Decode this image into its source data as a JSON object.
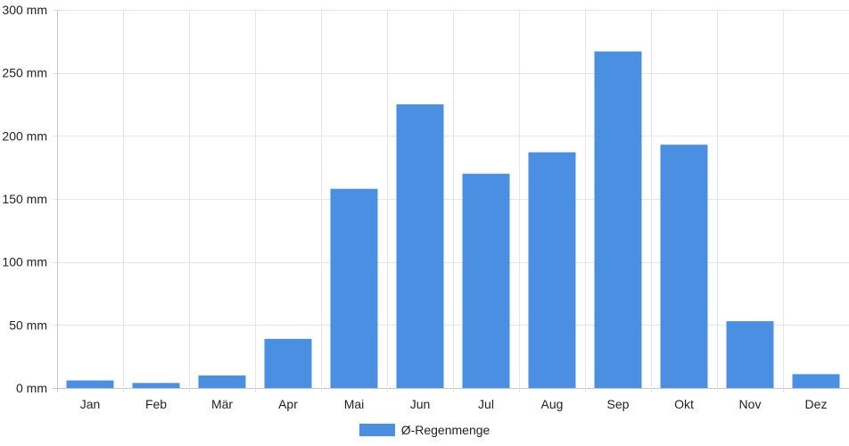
{
  "chart_data": {
    "type": "bar",
    "categories": [
      "Jan",
      "Feb",
      "Mär",
      "Apr",
      "Mai",
      "Jun",
      "Jul",
      "Aug",
      "Sep",
      "Okt",
      "Nov",
      "Dez"
    ],
    "series": [
      {
        "name": "Ø-Regenmenge",
        "values": [
          6,
          4,
          10,
          39,
          158,
          225,
          170,
          187,
          267,
          193,
          53,
          11
        ],
        "color": "#4a8fe2"
      }
    ],
    "ylim": [
      0,
      300
    ],
    "yticks": [
      0,
      50,
      100,
      150,
      200,
      250,
      300
    ],
    "yunit": "mm",
    "ytick_labels": [
      "0 mm",
      "50 mm",
      "100 mm",
      "150 mm",
      "200 mm",
      "250 mm",
      "300 mm"
    ],
    "grid": true,
    "legend_position": "bottom"
  },
  "legend": {
    "label": "Ø-Regenmenge",
    "color": "#4a8fe2"
  }
}
